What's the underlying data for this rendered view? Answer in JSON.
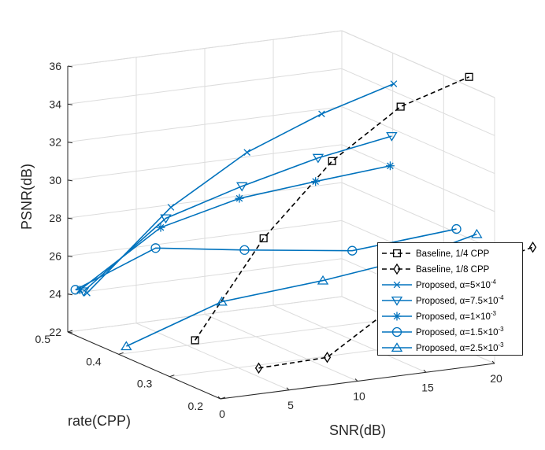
{
  "chart_data": {
    "type": "line",
    "projection": "3d",
    "xlabel": "SNR(dB)",
    "ylabel": "rate(CPP)",
    "zlabel": "PSNR(dB)",
    "xlim": [
      0,
      20
    ],
    "ylim": [
      0.2,
      0.5
    ],
    "zlim": [
      22,
      36
    ],
    "xticks": [
      "0",
      "5",
      "10",
      "15",
      "20"
    ],
    "yticks": [
      "0.2",
      "0.3",
      "0.4",
      "0.5"
    ],
    "zticks": [
      "22",
      "24",
      "26",
      "28",
      "30",
      "32",
      "34",
      "36"
    ],
    "grid": true,
    "legend_position": "lower-right",
    "series": [
      {
        "name": "Baseline, 1/4 CPP",
        "name_prefix": "Baseline, 1/4 CPP",
        "name_suffix": "",
        "color": "#000000",
        "dash": true,
        "marker": "square",
        "points": [
          [
            0,
            0.25,
            24.5
          ],
          [
            5,
            0.25,
            29.4
          ],
          [
            10,
            0.25,
            33.0
          ],
          [
            15,
            0.25,
            35.4
          ],
          [
            20,
            0.25,
            36.5
          ]
        ]
      },
      {
        "name": "Baseline, 1/8 CPP",
        "name_prefix": "Baseline, 1/8 CPP",
        "name_suffix": "",
        "color": "#000000",
        "dash": true,
        "marker": "diamond",
        "points": [
          [
            0,
            0.125,
            24.5
          ],
          [
            5,
            0.125,
            24.6
          ],
          [
            10,
            0.125,
            26.9
          ],
          [
            15,
            0.125,
            28.2
          ],
          [
            20,
            0.125,
            29.0
          ]
        ]
      },
      {
        "name": "Proposed, α=5×10^-4",
        "name_prefix": "Proposed, α=5×10",
        "name_suffix": "-4",
        "color": "#0072BD",
        "dash": false,
        "marker": "x",
        "points": [
          [
            0,
            0.462,
            24.5
          ],
          [
            5,
            0.432,
            28.9
          ],
          [
            10,
            0.417,
            31.5
          ],
          [
            15,
            0.405,
            33.2
          ],
          [
            20,
            0.398,
            34.4
          ]
        ]
      },
      {
        "name": "Proposed, α=7.5×10^-4",
        "name_prefix": "Proposed, α=7.5×10",
        "name_suffix": "-4",
        "color": "#0072BD",
        "dash": false,
        "marker": "triangle-down",
        "points": [
          [
            0,
            0.469,
            24.5
          ],
          [
            5,
            0.442,
            28.2
          ],
          [
            10,
            0.427,
            29.6
          ],
          [
            15,
            0.412,
            30.8
          ],
          [
            20,
            0.402,
            31.6
          ]
        ]
      },
      {
        "name": "Proposed, α=1×10^-3",
        "name_prefix": "Proposed, α=1×10",
        "name_suffix": "-3",
        "color": "#0072BD",
        "dash": false,
        "marker": "asterisk",
        "points": [
          [
            0,
            0.476,
            24.5
          ],
          [
            5,
            0.452,
            27.6
          ],
          [
            10,
            0.432,
            28.9
          ],
          [
            15,
            0.417,
            29.5
          ],
          [
            20,
            0.405,
            30.0
          ]
        ]
      },
      {
        "name": "Proposed, α=1.5×10^-3",
        "name_prefix": "Proposed, α=1.5×10",
        "name_suffix": "-3",
        "color": "#0072BD",
        "dash": false,
        "marker": "circle",
        "points": [
          [
            0,
            0.485,
            24.4
          ],
          [
            5,
            0.462,
            26.4
          ],
          [
            10,
            0.422,
            26.3
          ],
          [
            15,
            0.345,
            26.7
          ],
          [
            20,
            0.275,
            28.2
          ]
        ]
      },
      {
        "name": "Proposed, α=2.5×10^-3",
        "name_prefix": "Proposed, α=2.5×10",
        "name_suffix": "-3",
        "color": "#0072BD",
        "dash": false,
        "marker": "triangle-up",
        "points": [
          [
            0,
            0.385,
            22.6
          ],
          [
            5,
            0.332,
            25.1
          ],
          [
            10,
            0.268,
            26.5
          ],
          [
            15,
            0.232,
            27.6
          ],
          [
            20,
            0.235,
            28.4
          ]
        ]
      }
    ]
  }
}
